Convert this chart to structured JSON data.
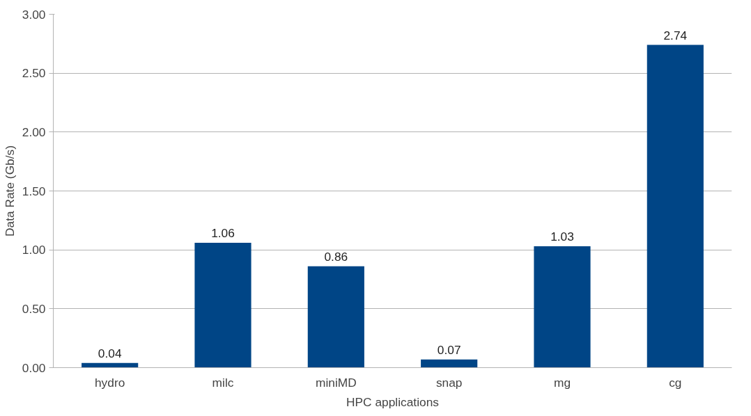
{
  "chart_data": {
    "type": "bar",
    "xlabel": "HPC applications",
    "ylabel": "Data Rate (Gb/s)",
    "categories": [
      "hydro",
      "milc",
      "miniMD",
      "snap",
      "mg",
      "cg"
    ],
    "values": [
      0.04,
      1.06,
      0.86,
      0.07,
      1.03,
      2.74
    ],
    "color": "#004586",
    "ylim": [
      0,
      3
    ],
    "yticks": [
      {
        "value": 0,
        "label": "0.00"
      },
      {
        "value": 0.5,
        "label": "0.50"
      },
      {
        "value": 1,
        "label": "1.00"
      },
      {
        "value": 1.5,
        "label": "1.50"
      },
      {
        "value": 2,
        "label": "2.00"
      },
      {
        "value": 2.5,
        "label": "2.50"
      },
      {
        "value": 3,
        "label": "3.00"
      }
    ],
    "grid": "y",
    "data_labels": true
  }
}
